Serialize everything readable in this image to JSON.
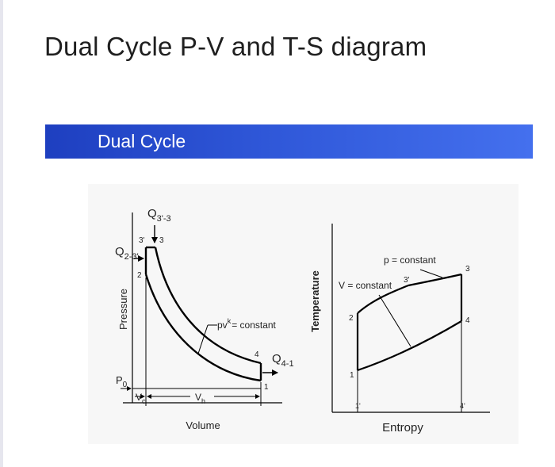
{
  "page": {
    "title": "Dual Cycle P-V and T-S diagram"
  },
  "banner": {
    "title": "Dual Cycle",
    "colors": {
      "start": "#1e3fc0",
      "end": "#4470ee"
    }
  },
  "pv_diagram": {
    "axis_y_label": "Pressure",
    "axis_x_label": "Volume",
    "heat_in_const_p": {
      "main": "Q",
      "sub": "3'-3"
    },
    "heat_in_const_v": {
      "main": "Q",
      "sub": "2-3'"
    },
    "heat_out": {
      "main": "Q",
      "sub": "4-1"
    },
    "point_3prime": "3'",
    "point_3": "3",
    "point_2": "2",
    "point_4": "4",
    "point_1": "1",
    "p0": {
      "main": "P",
      "sub": "0"
    },
    "vc": {
      "main": "V",
      "sub": "c"
    },
    "vh": {
      "main": "V",
      "sub": "h"
    },
    "isentrope": {
      "pre": "pv",
      "sup": "k",
      "post": "= constant"
    }
  },
  "ts_diagram": {
    "axis_y_label": "Temperature",
    "axis_x_label": "Entropy",
    "p_constant_label": "p = constant",
    "v_constant_label": "V = constant",
    "point_3prime": "3'",
    "point_3": "3",
    "point_2": "2",
    "point_4": "4",
    "point_1": "1",
    "point_1prime": "1'",
    "point_4prime": "4'"
  }
}
